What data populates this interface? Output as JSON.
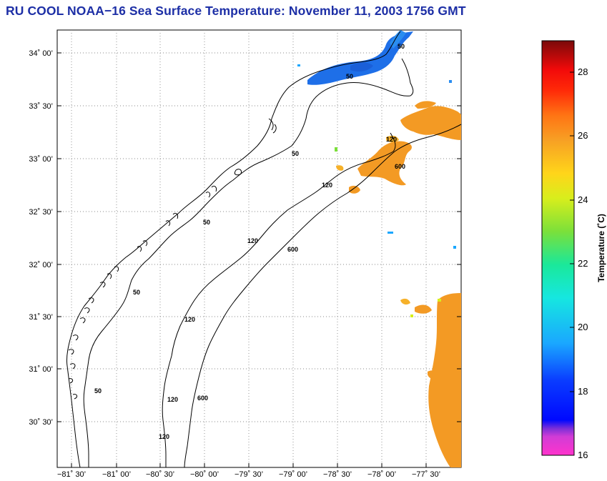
{
  "title": "RU COOL  NOAA−16  Sea Surface Temperature:  November 11, 2003 1756 GMT",
  "map": {
    "lat_ticks": [
      "34˚ 00’",
      "33˚ 30’",
      "33˚ 00’",
      "32˚ 30’",
      "32˚ 00’",
      "31˚ 30’",
      "31˚ 00’",
      "30˚ 30’"
    ],
    "lon_ticks": [
      "−81˚ 30’",
      "−81˚ 00’",
      "−80˚ 30’",
      "−80˚ 00’",
      "−79˚ 30’",
      "−79˚ 00’",
      "−78˚ 30’",
      "−78˚ 00’",
      "−77˚ 30’"
    ],
    "contour_labels": [
      "50",
      "50",
      "50",
      "50",
      "50",
      "50",
      "120",
      "120",
      "120",
      "120",
      "120",
      "120",
      "600",
      "600",
      "600"
    ]
  },
  "colorbar": {
    "title": "Temperature (˚C)",
    "ticks": [
      "28",
      "26",
      "24",
      "22",
      "20",
      "18",
      "16"
    ],
    "range": [
      16,
      29
    ]
  },
  "colors": {
    "title": "#1d2fa6",
    "cold_patch": "#1e6fe8",
    "warm_patch": "#f39a24"
  }
}
